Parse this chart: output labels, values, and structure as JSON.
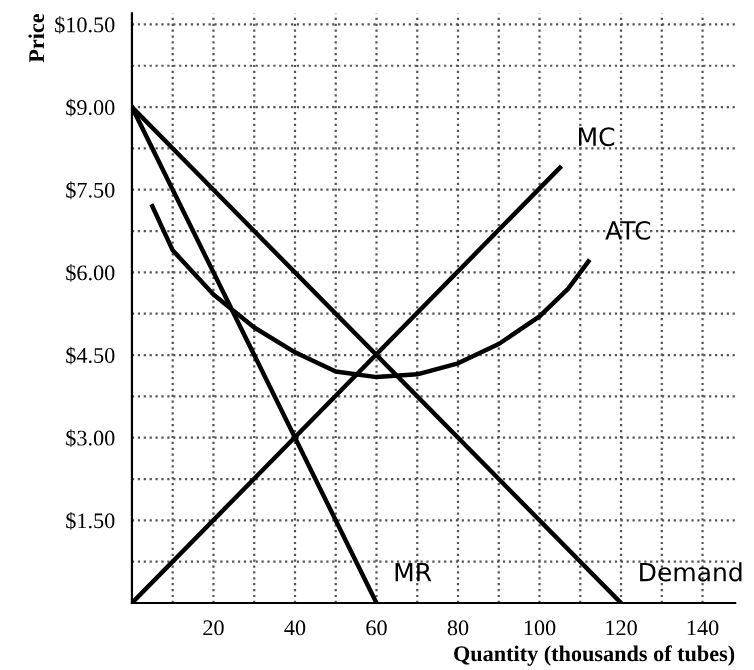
{
  "chart_data": {
    "type": "line",
    "xlabel": "Quantity (thousands of tubes)",
    "ylabel": "Price",
    "series": [
      {
        "name": "Demand",
        "color": "#000000",
        "x": [
          0,
          120
        ],
        "values": [
          9.0,
          0
        ]
      },
      {
        "name": "MR",
        "color": "#000000",
        "x": [
          0,
          60
        ],
        "values": [
          9.0,
          0
        ]
      },
      {
        "name": "MC",
        "color": "#000000",
        "x": [
          0,
          105
        ],
        "values": [
          0,
          7.9
        ]
      },
      {
        "name": "ATC",
        "color": "#000000",
        "x": [
          5,
          10,
          20,
          30,
          40,
          50,
          60,
          70,
          80,
          90,
          100,
          107,
          112
        ],
        "values": [
          7.2,
          6.4,
          5.6,
          5.0,
          4.55,
          4.2,
          4.1,
          4.15,
          4.35,
          4.7,
          5.2,
          5.7,
          6.2
        ]
      }
    ],
    "xlim": [
      0,
      148
    ],
    "ylim": [
      0,
      10.7
    ],
    "xticks": [
      {
        "value": 10,
        "label": null
      },
      20,
      {
        "value": 30,
        "label": null
      },
      40,
      {
        "value": 50,
        "label": null
      },
      60,
      {
        "value": 70,
        "label": null
      },
      80,
      {
        "value": 90,
        "label": null
      },
      100,
      {
        "value": 110,
        "label": null
      },
      120,
      {
        "value": 130,
        "label": null
      },
      140
    ],
    "yticks": [
      {
        "value": 0.75,
        "label": null
      },
      {
        "value": 1.5,
        "label": "$1.50"
      },
      {
        "value": 2.25,
        "label": null
      },
      {
        "value": 3.0,
        "label": "$3.00"
      },
      {
        "value": 3.75,
        "label": null
      },
      {
        "value": 4.5,
        "label": "$4.50"
      },
      {
        "value": 5.25,
        "label": null
      },
      {
        "value": 6.0,
        "label": "$6.00"
      },
      {
        "value": 6.75,
        "label": null
      },
      {
        "value": 7.5,
        "label": "$7.50"
      },
      {
        "value": 8.25,
        "label": null
      },
      {
        "value": 9.0,
        "label": "$9.00"
      },
      {
        "value": 9.75,
        "label": null
      },
      {
        "value": 10.5,
        "label": "$10.50"
      }
    ],
    "grid": true,
    "legend": false,
    "marker": "none",
    "line_style": "solid"
  }
}
